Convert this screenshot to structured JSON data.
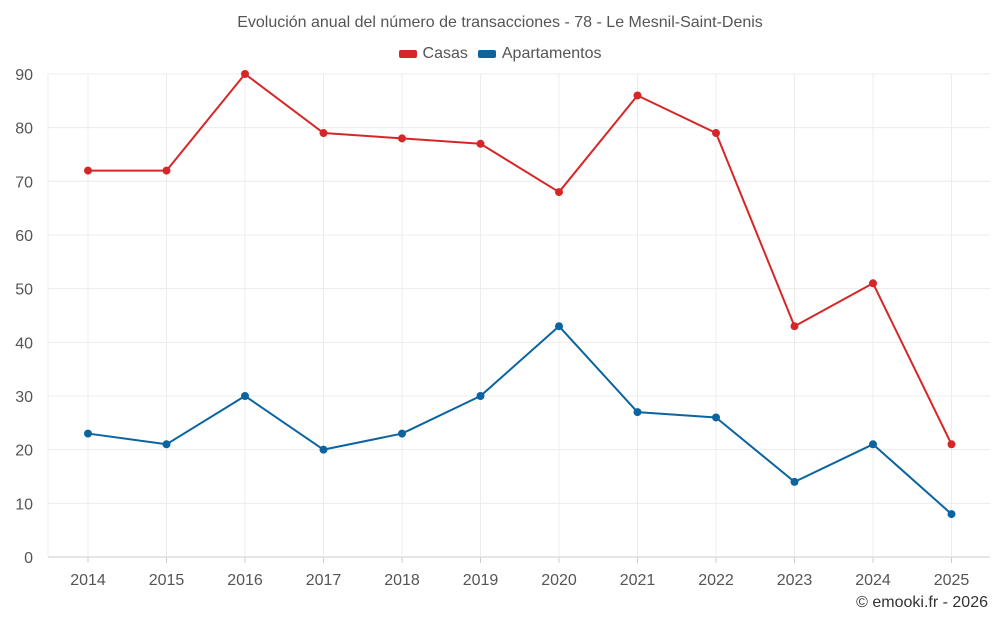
{
  "chart_data": {
    "type": "line",
    "title": "Evolución anual del número de transacciones - 78 - Le Mesnil-Saint-Denis",
    "xlabel": "",
    "ylabel": "",
    "categories": [
      "2014",
      "2015",
      "2016",
      "2017",
      "2018",
      "2019",
      "2020",
      "2021",
      "2022",
      "2023",
      "2024",
      "2025"
    ],
    "ylim": [
      0,
      90
    ],
    "yticks": [
      0,
      10,
      20,
      30,
      40,
      50,
      60,
      70,
      80,
      90
    ],
    "grid": true,
    "legend_position": "top-center",
    "series": [
      {
        "name": "Casas",
        "color": "#d62728",
        "values": [
          72,
          72,
          90,
          79,
          78,
          77,
          68,
          86,
          79,
          43,
          51,
          21
        ]
      },
      {
        "name": "Apartamentos",
        "color": "#0a64a0",
        "values": [
          23,
          21,
          30,
          20,
          23,
          30,
          43,
          27,
          26,
          14,
          21,
          8
        ]
      }
    ]
  },
  "credit": "© emooki.fr - 2026"
}
